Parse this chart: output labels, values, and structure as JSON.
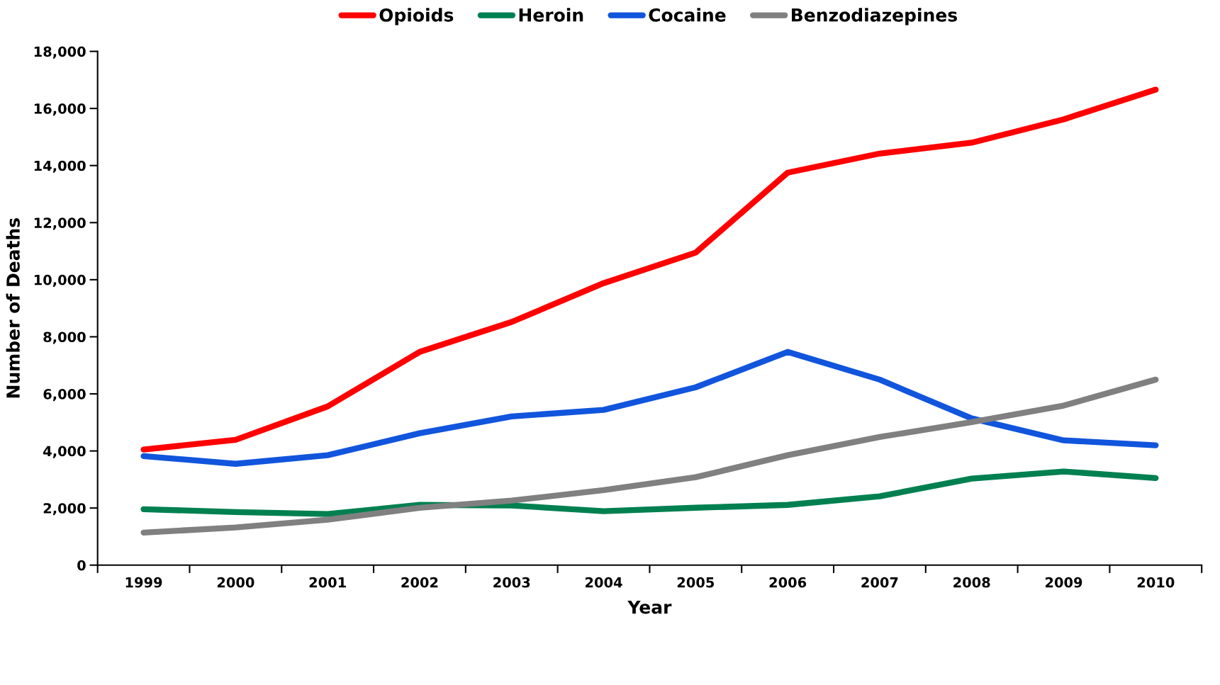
{
  "chart_data": {
    "type": "line",
    "xlabel": "Year",
    "ylabel": "Number of Deaths",
    "categories": [
      "1999",
      "2000",
      "2001",
      "2002",
      "2003",
      "2004",
      "2005",
      "2006",
      "2007",
      "2008",
      "2009",
      "2010"
    ],
    "ylim": [
      0,
      18000
    ],
    "yticks": [
      {
        "value": 0,
        "label": "0"
      },
      {
        "value": 2000,
        "label": "2,000"
      },
      {
        "value": 4000,
        "label": "4,000"
      },
      {
        "value": 6000,
        "label": "6,000"
      },
      {
        "value": 8000,
        "label": "8,000"
      },
      {
        "value": 10000,
        "label": "10,000"
      },
      {
        "value": 12000,
        "label": "12,000"
      },
      {
        "value": 14000,
        "label": "14,000"
      },
      {
        "value": 16000,
        "label": "16,000"
      },
      {
        "value": 18000,
        "label": "18,000"
      }
    ],
    "grid": false,
    "legend": "top",
    "marker": "none",
    "line_style": "solid",
    "series": [
      {
        "name": "Opioids",
        "color": "#ff0000",
        "values": [
          4050,
          4390,
          5560,
          7470,
          8520,
          9880,
          10950,
          13750,
          14420,
          14800,
          15620,
          16660
        ]
      },
      {
        "name": "Heroin",
        "color": "#008050",
        "values": [
          1960,
          1860,
          1790,
          2110,
          2090,
          1890,
          2010,
          2110,
          2410,
          3030,
          3280,
          3050
        ]
      },
      {
        "name": "Cocaine",
        "color": "#1155dd",
        "values": [
          3820,
          3550,
          3850,
          4620,
          5210,
          5440,
          6230,
          7470,
          6500,
          5140,
          4370,
          4200
        ]
      },
      {
        "name": "Benzodiazepines",
        "color": "#808080",
        "values": [
          1140,
          1320,
          1590,
          2010,
          2260,
          2630,
          3080,
          3850,
          4490,
          5010,
          5590,
          6500
        ]
      }
    ]
  }
}
